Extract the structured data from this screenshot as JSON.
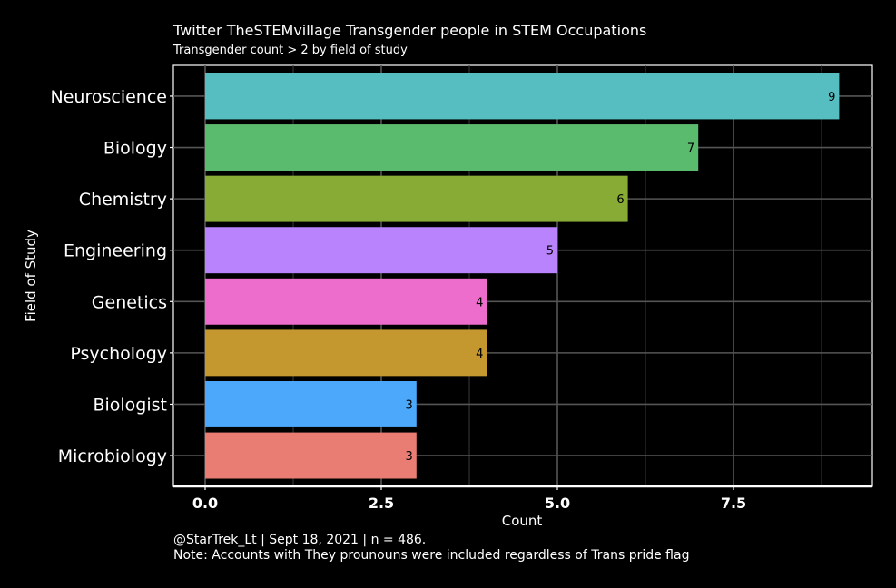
{
  "chart_data": {
    "type": "bar",
    "orientation": "horizontal",
    "title": "Twitter TheSTEMvillage Transgender people in STEM Occupations",
    "subtitle": "Transgender count > 2 by field of study",
    "xlabel": "Count",
    "ylabel": "Field of Study",
    "categories": [
      "Neuroscience",
      "Biology",
      "Chemistry",
      "Engineering",
      "Genetics",
      "Psychology",
      "Biologist",
      "Microbiology"
    ],
    "values": [
      9,
      7,
      6,
      5,
      4,
      4,
      3,
      3
    ],
    "colors": [
      "#56bec1",
      "#5aba6e",
      "#87ab35",
      "#b983fd",
      "#ec6dcc",
      "#c4972f",
      "#4ba8fa",
      "#e97d73"
    ],
    "xlim": [
      0,
      9.45
    ],
    "xticks": [
      "0.0",
      "2.5",
      "5.0",
      "7.5"
    ],
    "grid": true,
    "caption_line1": "@StarTrek_Lt | Sept 18, 2021 | n = 486.",
    "caption_line2": "Note: Accounts with They prounouns were included regardless of Trans pride flag"
  }
}
